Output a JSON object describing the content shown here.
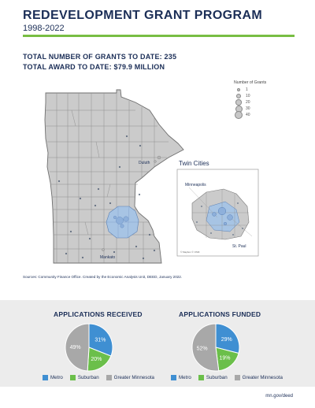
{
  "header": {
    "title": "REDEVELOPMENT GRANT PROGRAM",
    "subtitle": "1998-2022"
  },
  "stats": {
    "total_grants": "TOTAL NUMBER OF GRANTS TO DATE: 235",
    "total_award": "TOTAL AWARD TO DATE: $79.9 MILLION"
  },
  "map": {
    "legend_title": "Number of Grants",
    "legend_values": [
      "1",
      "10",
      "20",
      "30",
      "40"
    ],
    "city_labels": {
      "duluth": "Duluth",
      "mankato": "Mankato"
    },
    "inset": {
      "title": "Twin Cities",
      "minneapolis": "Minneapolis",
      "st_paul": "St. Paul",
      "credit": "© Mapbox © OSM"
    },
    "colors": {
      "county_fill": "#cbcbcb",
      "metro_fill": "#a7c4e4",
      "boundary": "#777777"
    }
  },
  "source_note": "Sources: Community Finance Office. Created by the Economic Analysis Unit, DEED, January 2022.",
  "charts": {
    "received_title": "APPLICATIONS RECEIVED",
    "funded_title": "APPLICATIONS FUNDED",
    "legend": [
      "Metro",
      "Suburban",
      "Greater Minnesota"
    ]
  },
  "chart_data": [
    {
      "type": "pie",
      "title": "APPLICATIONS RECEIVED",
      "categories": [
        "Metro",
        "Suburban",
        "Greater Minnesota"
      ],
      "values": [
        31,
        20,
        49
      ],
      "labels": [
        "31%",
        "20%",
        "49%"
      ],
      "colors": [
        "#3f8fd2",
        "#6bbf4a",
        "#a8a8a8"
      ],
      "legend_position": "bottom"
    },
    {
      "type": "pie",
      "title": "APPLICATIONS FUNDED",
      "categories": [
        "Metro",
        "Suburban",
        "Greater Minnesota"
      ],
      "values": [
        29,
        19,
        52
      ],
      "labels": [
        "29%",
        "19%",
        "52%"
      ],
      "colors": [
        "#3f8fd2",
        "#6bbf4a",
        "#a8a8a8"
      ],
      "legend_position": "bottom"
    }
  ],
  "footer": {
    "url": "mn.gov/deed"
  }
}
